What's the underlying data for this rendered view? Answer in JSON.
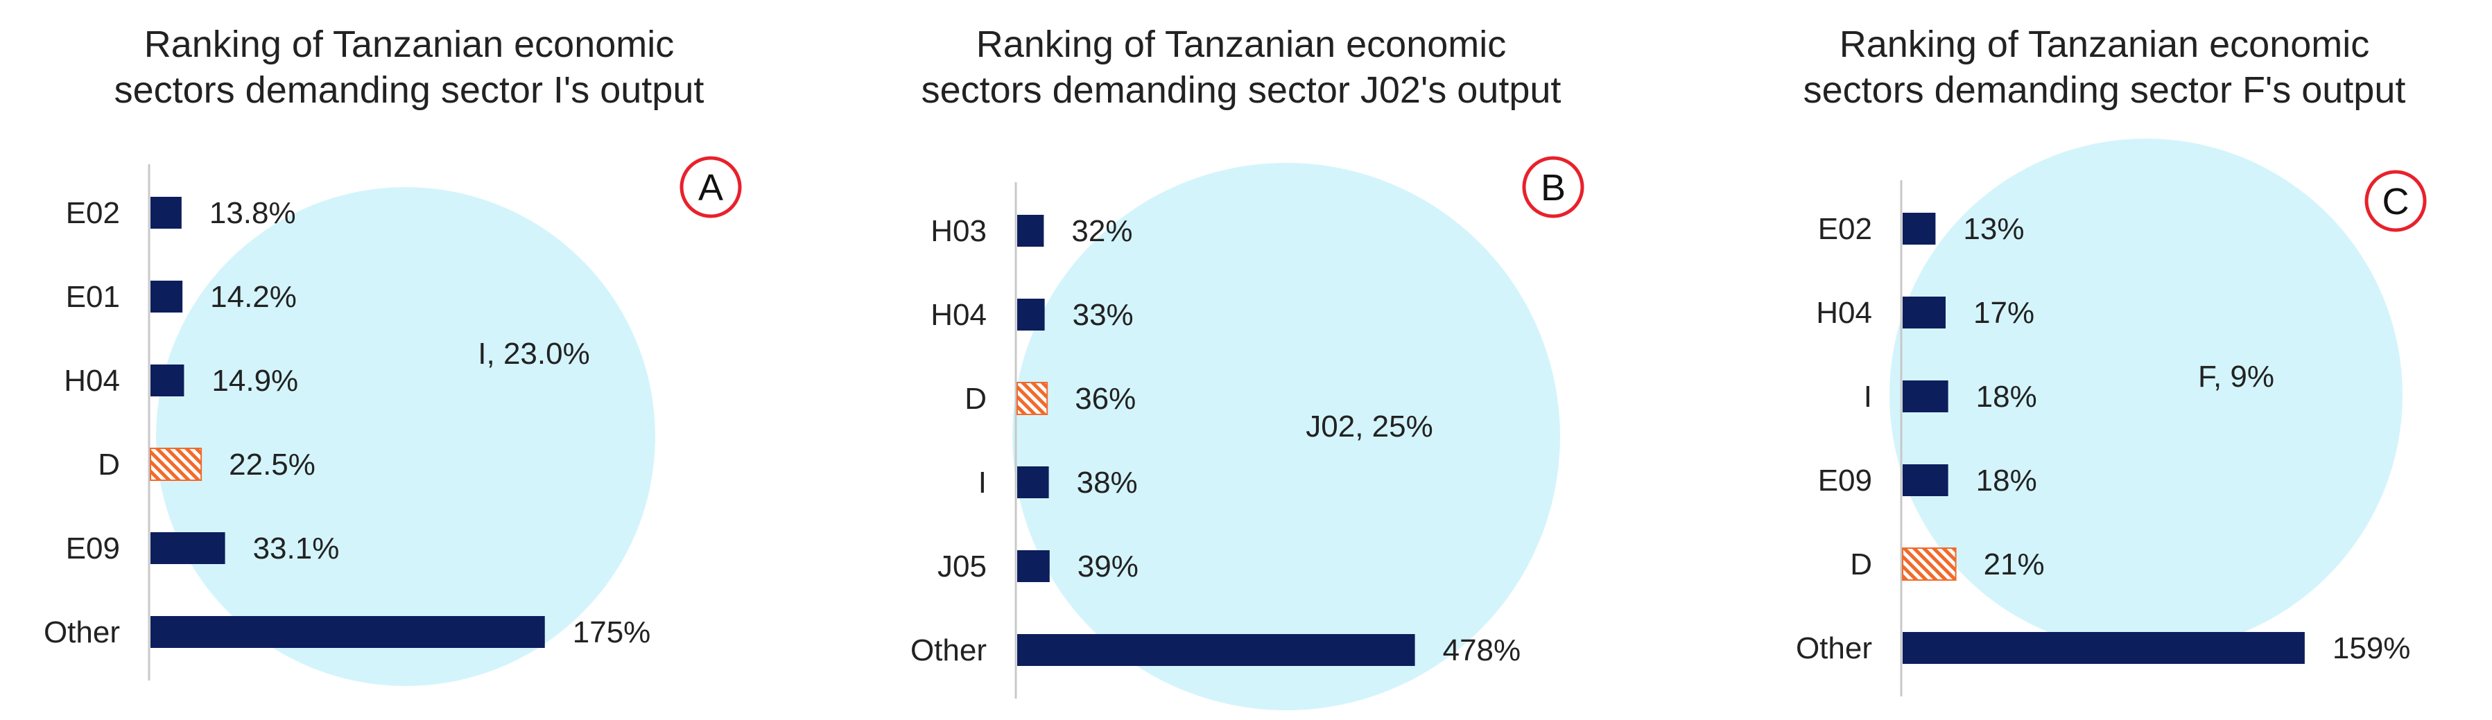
{
  "colors": {
    "bar": "#0d1e5c",
    "highlight_fill": "#f26a2a",
    "circle": "#d4f4fb",
    "badge_stroke": "#e8212b",
    "axis": "#c8c8c8",
    "text": "#222222"
  },
  "chart_data": [
    {
      "type": "bar",
      "orientation": "horizontal",
      "title": "Ranking of Tanzanian economic sectors demanding sector I's output",
      "title_lines": [
        "Ranking of Tanzanian economic",
        "sectors demanding sector I's output"
      ],
      "badge": "A",
      "circle_label": "I, 23.0%",
      "categories": [
        "E02",
        "E01",
        "H04",
        "D",
        "E09",
        "Other"
      ],
      "values": [
        13.8,
        14.2,
        14.9,
        22.5,
        33.1,
        175
      ],
      "value_labels": [
        "13.8%",
        "14.2%",
        "14.9%",
        "22.5%",
        "33.1%",
        "175%"
      ],
      "highlight": "D",
      "xlim": [
        0,
        200
      ],
      "unit": "%"
    },
    {
      "type": "bar",
      "orientation": "horizontal",
      "title": "Ranking of Tanzanian economic sectors demanding sector J02's output",
      "title_lines": [
        "Ranking of Tanzanian economic",
        "sectors demanding sector J02's output"
      ],
      "badge": "B",
      "circle_label": "J02, 25%",
      "categories": [
        "H03",
        "H04",
        "D",
        "I",
        "J05",
        "Other"
      ],
      "values": [
        32,
        33,
        36,
        38,
        39,
        478
      ],
      "value_labels": [
        "32%",
        "33%",
        "36%",
        "38%",
        "39%",
        "478%"
      ],
      "highlight": "D",
      "xlim": [
        0,
        500
      ],
      "unit": "%"
    },
    {
      "type": "bar",
      "orientation": "horizontal",
      "title": "Ranking of Tanzanian economic sectors demanding sector F's output",
      "title_lines": [
        "Ranking of Tanzanian economic",
        "sectors demanding sector F's output"
      ],
      "badge": "C",
      "circle_label": "F, 9%",
      "categories": [
        "E02",
        "H04",
        "I",
        "E09",
        "D",
        "Other"
      ],
      "values": [
        13,
        17,
        18,
        18,
        21,
        159
      ],
      "value_labels": [
        "13%",
        "17%",
        "18%",
        "18%",
        "21%",
        "159%"
      ],
      "highlight": "D",
      "xlim": [
        0,
        170
      ],
      "unit": "%"
    }
  ]
}
